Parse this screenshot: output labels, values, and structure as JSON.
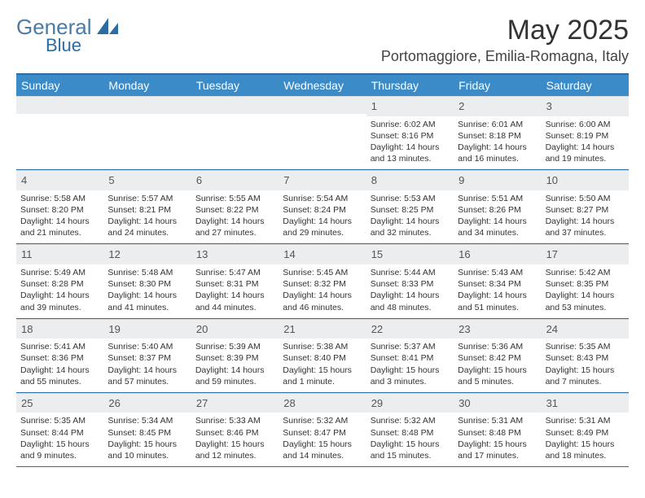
{
  "logo": {
    "main": "General",
    "sub": "Blue"
  },
  "title": "May 2025",
  "location": "Portomaggiore, Emilia-Romagna, Italy",
  "colors": {
    "header_bg": "#3b8bc9",
    "header_border": "#2b6ca3",
    "num_row_bg": "#ecedee",
    "text": "#333333"
  },
  "dayNames": [
    "Sunday",
    "Monday",
    "Tuesday",
    "Wednesday",
    "Thursday",
    "Friday",
    "Saturday"
  ],
  "weeks": [
    [
      null,
      null,
      null,
      null,
      {
        "n": "1",
        "sr": "6:02 AM",
        "ss": "8:16 PM",
        "dl": "14 hours and 13 minutes."
      },
      {
        "n": "2",
        "sr": "6:01 AM",
        "ss": "8:18 PM",
        "dl": "14 hours and 16 minutes."
      },
      {
        "n": "3",
        "sr": "6:00 AM",
        "ss": "8:19 PM",
        "dl": "14 hours and 19 minutes."
      }
    ],
    [
      {
        "n": "4",
        "sr": "5:58 AM",
        "ss": "8:20 PM",
        "dl": "14 hours and 21 minutes."
      },
      {
        "n": "5",
        "sr": "5:57 AM",
        "ss": "8:21 PM",
        "dl": "14 hours and 24 minutes."
      },
      {
        "n": "6",
        "sr": "5:55 AM",
        "ss": "8:22 PM",
        "dl": "14 hours and 27 minutes."
      },
      {
        "n": "7",
        "sr": "5:54 AM",
        "ss": "8:24 PM",
        "dl": "14 hours and 29 minutes."
      },
      {
        "n": "8",
        "sr": "5:53 AM",
        "ss": "8:25 PM",
        "dl": "14 hours and 32 minutes."
      },
      {
        "n": "9",
        "sr": "5:51 AM",
        "ss": "8:26 PM",
        "dl": "14 hours and 34 minutes."
      },
      {
        "n": "10",
        "sr": "5:50 AM",
        "ss": "8:27 PM",
        "dl": "14 hours and 37 minutes."
      }
    ],
    [
      {
        "n": "11",
        "sr": "5:49 AM",
        "ss": "8:28 PM",
        "dl": "14 hours and 39 minutes."
      },
      {
        "n": "12",
        "sr": "5:48 AM",
        "ss": "8:30 PM",
        "dl": "14 hours and 41 minutes."
      },
      {
        "n": "13",
        "sr": "5:47 AM",
        "ss": "8:31 PM",
        "dl": "14 hours and 44 minutes."
      },
      {
        "n": "14",
        "sr": "5:45 AM",
        "ss": "8:32 PM",
        "dl": "14 hours and 46 minutes."
      },
      {
        "n": "15",
        "sr": "5:44 AM",
        "ss": "8:33 PM",
        "dl": "14 hours and 48 minutes."
      },
      {
        "n": "16",
        "sr": "5:43 AM",
        "ss": "8:34 PM",
        "dl": "14 hours and 51 minutes."
      },
      {
        "n": "17",
        "sr": "5:42 AM",
        "ss": "8:35 PM",
        "dl": "14 hours and 53 minutes."
      }
    ],
    [
      {
        "n": "18",
        "sr": "5:41 AM",
        "ss": "8:36 PM",
        "dl": "14 hours and 55 minutes."
      },
      {
        "n": "19",
        "sr": "5:40 AM",
        "ss": "8:37 PM",
        "dl": "14 hours and 57 minutes."
      },
      {
        "n": "20",
        "sr": "5:39 AM",
        "ss": "8:39 PM",
        "dl": "14 hours and 59 minutes."
      },
      {
        "n": "21",
        "sr": "5:38 AM",
        "ss": "8:40 PM",
        "dl": "15 hours and 1 minute."
      },
      {
        "n": "22",
        "sr": "5:37 AM",
        "ss": "8:41 PM",
        "dl": "15 hours and 3 minutes."
      },
      {
        "n": "23",
        "sr": "5:36 AM",
        "ss": "8:42 PM",
        "dl": "15 hours and 5 minutes."
      },
      {
        "n": "24",
        "sr": "5:35 AM",
        "ss": "8:43 PM",
        "dl": "15 hours and 7 minutes."
      }
    ],
    [
      {
        "n": "25",
        "sr": "5:35 AM",
        "ss": "8:44 PM",
        "dl": "15 hours and 9 minutes."
      },
      {
        "n": "26",
        "sr": "5:34 AM",
        "ss": "8:45 PM",
        "dl": "15 hours and 10 minutes."
      },
      {
        "n": "27",
        "sr": "5:33 AM",
        "ss": "8:46 PM",
        "dl": "15 hours and 12 minutes."
      },
      {
        "n": "28",
        "sr": "5:32 AM",
        "ss": "8:47 PM",
        "dl": "15 hours and 14 minutes."
      },
      {
        "n": "29",
        "sr": "5:32 AM",
        "ss": "8:48 PM",
        "dl": "15 hours and 15 minutes."
      },
      {
        "n": "30",
        "sr": "5:31 AM",
        "ss": "8:48 PM",
        "dl": "15 hours and 17 minutes."
      },
      {
        "n": "31",
        "sr": "5:31 AM",
        "ss": "8:49 PM",
        "dl": "15 hours and 18 minutes."
      }
    ]
  ],
  "labels": {
    "sunrise": "Sunrise:",
    "sunset": "Sunset:",
    "daylight": "Daylight:"
  }
}
